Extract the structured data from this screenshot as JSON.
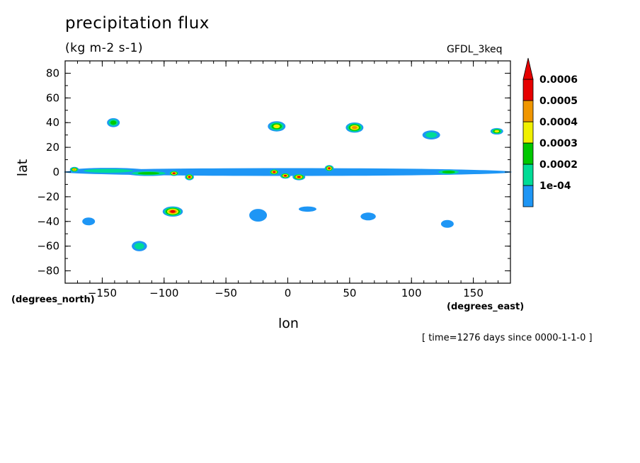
{
  "chart_data": {
    "type": "heatmap",
    "title": "precipitation flux",
    "units": "(kg m-2 s-1)",
    "model_label": "GFDL_3keq",
    "xlabel": "lon",
    "ylabel": "lat",
    "x_units_label": "(degrees_east)",
    "y_units_label": "(degrees_north)",
    "time_label": "[ time=1276 days since 0000-1-1-0 ]",
    "xlim": [
      -180,
      180
    ],
    "ylim": [
      -90,
      90
    ],
    "x_ticks": [
      -150,
      -100,
      -50,
      0,
      50,
      100,
      150
    ],
    "y_ticks": [
      80,
      60,
      40,
      20,
      0,
      -20,
      -40,
      -60,
      -80
    ],
    "colorbar": {
      "labels": [
        "0.0006",
        "0.0005",
        "0.0004",
        "0.0003",
        "0.0002",
        "1e-04"
      ],
      "colors": [
        "#1e96f5",
        "#00dc96",
        "#00c800",
        "#f0f000",
        "#f09600",
        "#e60000"
      ],
      "extend": "max"
    },
    "features": [
      {
        "lon": -180,
        "lat": 0,
        "dlon": 360,
        "dlat": 4,
        "level": 1
      },
      {
        "lon": -175,
        "lat": 1,
        "dlon": 60,
        "dlat": 2.5,
        "level": 2
      },
      {
        "lon": -130,
        "lat": -1,
        "dlon": 35,
        "dlat": 2,
        "level": 3
      },
      {
        "lon": -175,
        "lat": 2,
        "dlon": 5,
        "dlat": 2,
        "level": 5
      },
      {
        "lon": -95,
        "lat": -1,
        "dlon": 6,
        "dlat": 2,
        "level": 6
      },
      {
        "lon": -82,
        "lat": -4,
        "dlon": 5,
        "dlat": 3,
        "level": 6
      },
      {
        "lon": -14,
        "lat": 0,
        "dlon": 6,
        "dlat": 2.5,
        "level": 6
      },
      {
        "lon": -5,
        "lat": -3,
        "dlon": 6,
        "dlat": 2.5,
        "level": 6
      },
      {
        "lon": 5,
        "lat": -4,
        "dlon": 8,
        "dlat": 3,
        "level": 6
      },
      {
        "lon": 31,
        "lat": 3,
        "dlon": 5,
        "dlat": 3,
        "level": 6
      },
      {
        "lon": 120,
        "lat": 0,
        "dlon": 20,
        "dlat": 2,
        "level": 3
      },
      {
        "lon": -145,
        "lat": 40,
        "dlon": 8,
        "dlat": 5,
        "level": 3
      },
      {
        "lon": -15,
        "lat": 37,
        "dlon": 12,
        "dlat": 6,
        "level": 4
      },
      {
        "lon": 48,
        "lat": 36,
        "dlon": 12,
        "dlat": 6,
        "level": 5
      },
      {
        "lon": 110,
        "lat": 30,
        "dlon": 12,
        "dlat": 5,
        "level": 2
      },
      {
        "lon": 165,
        "lat": 33,
        "dlon": 8,
        "dlat": 3,
        "level": 4
      },
      {
        "lon": -100,
        "lat": -32,
        "dlon": 14,
        "dlat": 6,
        "level": 6
      },
      {
        "lon": -125,
        "lat": -60,
        "dlon": 10,
        "dlat": 6,
        "level": 2
      },
      {
        "lon": -30,
        "lat": -35,
        "dlon": 12,
        "dlat": 8,
        "level": 1
      },
      {
        "lon": 10,
        "lat": -30,
        "dlon": 12,
        "dlat": 2,
        "level": 1
      },
      {
        "lon": 60,
        "lat": -36,
        "dlon": 10,
        "dlat": 4,
        "level": 1
      },
      {
        "lon": 125,
        "lat": -42,
        "dlon": 8,
        "dlat": 4,
        "level": 1
      },
      {
        "lon": -165,
        "lat": -40,
        "dlon": 8,
        "dlat": 4,
        "level": 1
      }
    ]
  }
}
